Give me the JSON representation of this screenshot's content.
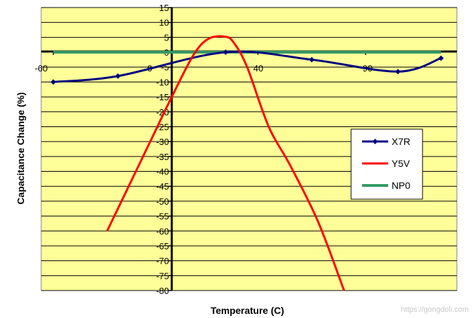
{
  "chart_data": {
    "type": "line",
    "title": "",
    "xlabel": "Temperature (C)",
    "ylabel": "Capacitance Change (%)",
    "xlim": [
      -60,
      125
    ],
    "ylim": [
      -80,
      15
    ],
    "yticks": [
      15,
      10,
      5,
      0,
      -5,
      -10,
      -15,
      -20,
      -25,
      -30,
      -35,
      -40,
      -45,
      -50,
      -55,
      -60,
      -65,
      -70,
      -75,
      -80
    ],
    "xticks": [
      -60,
      0,
      40,
      90
    ],
    "grid": true,
    "legend_position": "right",
    "colors": {
      "plot_background": "#ffff99",
      "gridline": "#000000",
      "X7R": "#000080",
      "Y5V": "#ff0000",
      "NP0": "#339966"
    },
    "series": [
      {
        "name": "X7R",
        "marker": "diamond",
        "x": [
          -55,
          -25,
          25,
          65,
          105,
          125
        ],
        "y": [
          -10,
          -8,
          0,
          -2.5,
          -6.5,
          -2
        ]
      },
      {
        "name": "Y5V",
        "marker": "none",
        "x": [
          -30,
          -20,
          -10,
          0,
          10,
          17,
          25,
          29,
          35,
          45,
          55,
          68,
          80
        ],
        "y": [
          -60,
          -45,
          -30,
          -15,
          -1,
          4.5,
          5.2,
          3,
          -5,
          -25,
          -38,
          -57,
          -80
        ]
      },
      {
        "name": "NP0",
        "marker": "none",
        "x": [
          -55,
          125
        ],
        "y": [
          0,
          0
        ]
      }
    ]
  },
  "watermark": "https://gongdoli.com"
}
